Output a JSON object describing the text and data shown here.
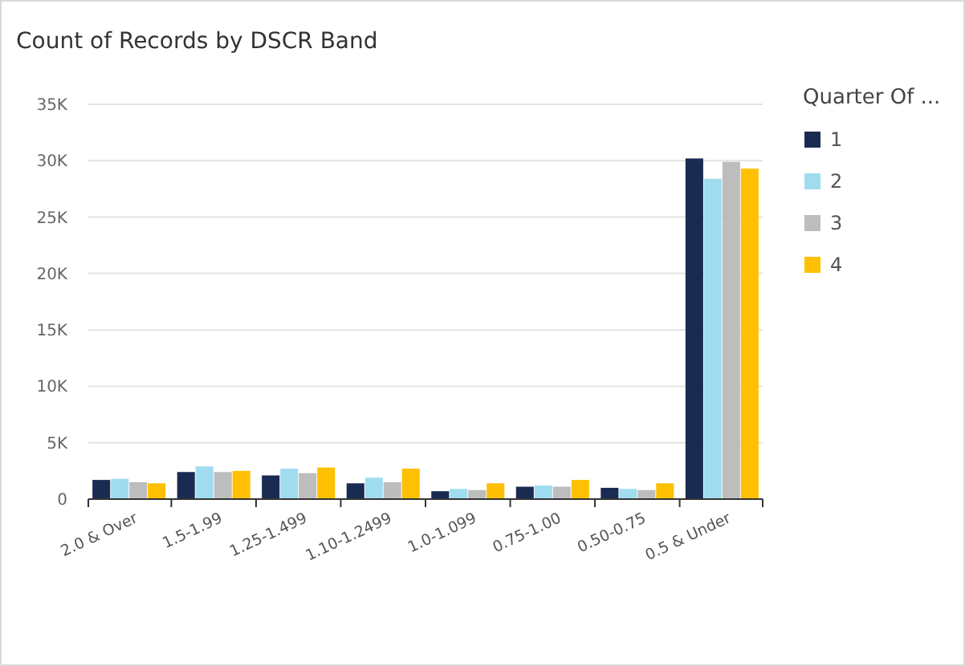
{
  "chart_data": {
    "type": "bar",
    "title": "Count of Records by DSCR Band",
    "legend_title": "Quarter Of ...",
    "categories": [
      "2.0 & Over",
      "1.5-1.99",
      "1.25-1.499",
      "1.10-1.2499",
      "1.0-1.099",
      "0.75-1.00",
      "0.50-0.75",
      "0.5 & Under"
    ],
    "series": [
      {
        "name": "1",
        "color": "#1a2b52",
        "values": [
          1700,
          2400,
          2100,
          1400,
          700,
          1100,
          1000,
          30200
        ]
      },
      {
        "name": "2",
        "color": "#a0dcef",
        "values": [
          1800,
          2900,
          2700,
          1900,
          900,
          1200,
          900,
          28400
        ]
      },
      {
        "name": "3",
        "color": "#bdbdbd",
        "values": [
          1500,
          2400,
          2300,
          1500,
          800,
          1100,
          800,
          29900
        ]
      },
      {
        "name": "4",
        "color": "#fec000",
        "values": [
          1400,
          2500,
          2800,
          2700,
          1400,
          1700,
          1400,
          29300
        ]
      }
    ],
    "ylim": [
      0,
      35000
    ],
    "yticks": [
      {
        "value": 0,
        "label": "0"
      },
      {
        "value": 5000,
        "label": "5K"
      },
      {
        "value": 10000,
        "label": "10K"
      },
      {
        "value": 15000,
        "label": "15K"
      },
      {
        "value": 20000,
        "label": "20K"
      },
      {
        "value": 25000,
        "label": "25K"
      },
      {
        "value": 30000,
        "label": "30K"
      },
      {
        "value": 35000,
        "label": "35K"
      }
    ],
    "grid": "y",
    "legend": "right"
  }
}
